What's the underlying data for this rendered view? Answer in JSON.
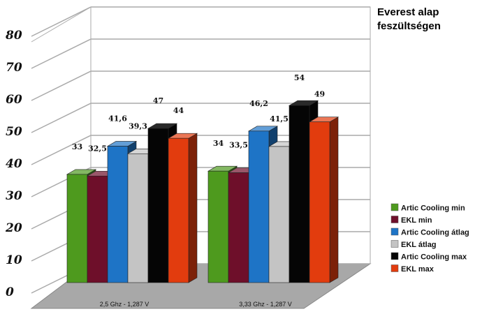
{
  "chart_data": {
    "type": "bar",
    "style": "3d-clustered",
    "title": "Everest alap feszültségen",
    "categories": [
      "2,5 Ghz - 1,287 V",
      "3,33 Ghz - 1,287 V"
    ],
    "ylim": [
      0,
      80
    ],
    "yticks": [
      0,
      10,
      20,
      30,
      40,
      50,
      60,
      70,
      80
    ],
    "grid": true,
    "legend_position": "right",
    "series": [
      {
        "name": "Artic Cooling min",
        "values": [
          33,
          34
        ],
        "labels": [
          "33",
          "34"
        ],
        "color": "#4e9a1e"
      },
      {
        "name": "EKL min",
        "values": [
          32.5,
          33.5
        ],
        "labels": [
          "32,5",
          "33,5"
        ],
        "color": "#6e0f2a"
      },
      {
        "name": "Artic Cooling átlag",
        "values": [
          41.6,
          46.2
        ],
        "labels": [
          "41,6",
          "46,2"
        ],
        "color": "#1e74c6"
      },
      {
        "name": "EKL átlag",
        "values": [
          39.3,
          41.5
        ],
        "labels": [
          "39,3",
          "41,5"
        ],
        "color": "#c4c4c4"
      },
      {
        "name": "Artic Cooling max",
        "values": [
          47,
          54
        ],
        "labels": [
          "47",
          "54"
        ],
        "color": "#050505"
      },
      {
        "name": "EKL max",
        "values": [
          44,
          49
        ],
        "labels": [
          "44",
          "49"
        ],
        "color": "#e23c0e"
      }
    ]
  }
}
